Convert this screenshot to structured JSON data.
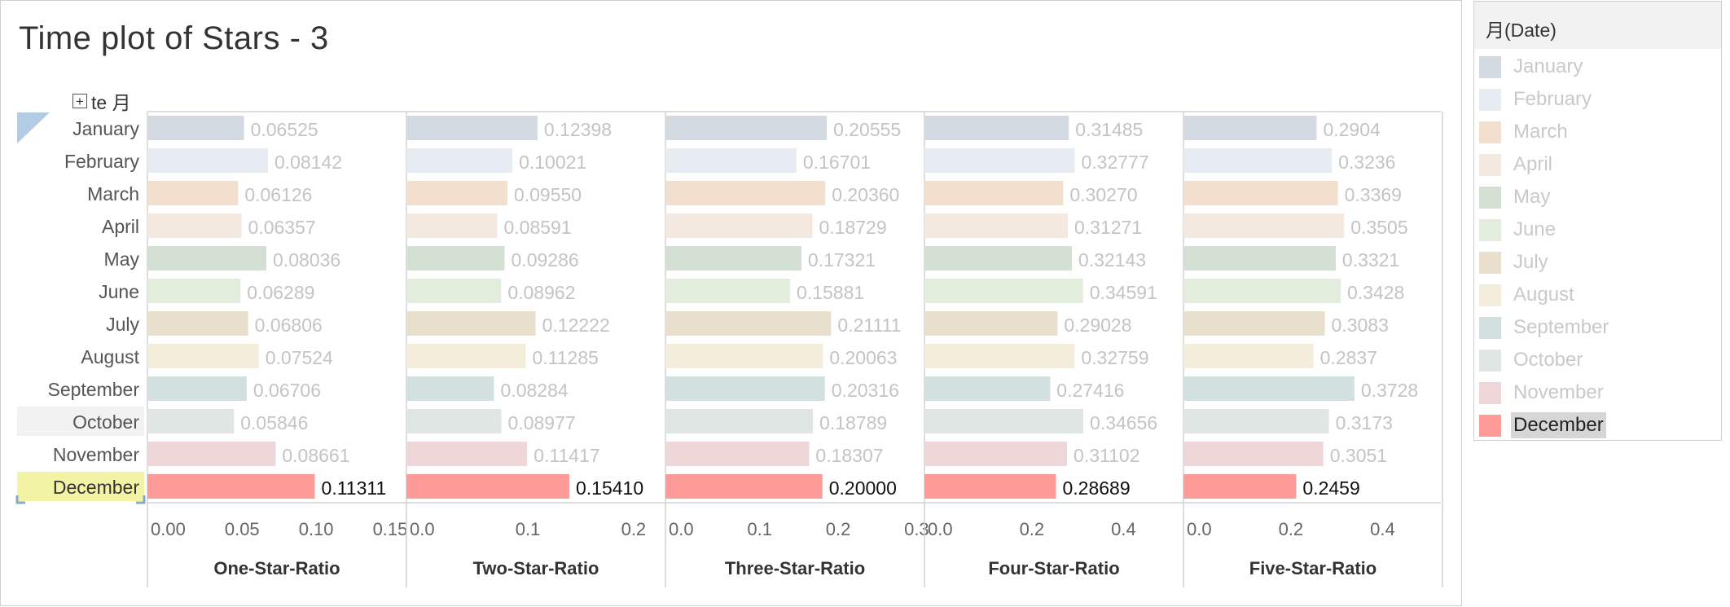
{
  "title": "Time plot of Stars - 3",
  "row_header": {
    "icon": "expand-box-icon",
    "label": "te 月"
  },
  "legend": {
    "title": "月(Date)",
    "items": [
      {
        "label": "January",
        "color": "#d3dae2",
        "active": false
      },
      {
        "label": "February",
        "color": "#e6ecf2",
        "active": false
      },
      {
        "label": "March",
        "color": "#f2dfce",
        "active": false
      },
      {
        "label": "April",
        "color": "#f3e9e0",
        "active": false
      },
      {
        "label": "May",
        "color": "#d3e0d3",
        "active": false
      },
      {
        "label": "June",
        "color": "#e2edde",
        "active": false
      },
      {
        "label": "July",
        "color": "#e8e0cd",
        "active": false
      },
      {
        "label": "August",
        "color": "#f4eddb",
        "active": false
      },
      {
        "label": "September",
        "color": "#d2e0df",
        "active": false
      },
      {
        "label": "October",
        "color": "#dfe6e4",
        "active": false
      },
      {
        "label": "November",
        "color": "#efd6d9",
        "active": false
      },
      {
        "label": "December",
        "color": "#fe9b98",
        "active": true
      }
    ]
  },
  "row_highlight": {
    "hover_row": "October",
    "selected_row": "December",
    "hover_color": "#f2f2f2",
    "selected_color": "#f3f3a5"
  },
  "chart_data": {
    "type": "bar",
    "orientation": "horizontal",
    "categories": [
      "January",
      "February",
      "March",
      "April",
      "May",
      "June",
      "July",
      "August",
      "September",
      "October",
      "November",
      "December"
    ],
    "series": [
      {
        "name": "One-Star-Ratio",
        "values": [
          0.06525,
          0.08142,
          0.06126,
          0.06357,
          0.08036,
          0.06289,
          0.06806,
          0.07524,
          0.06706,
          0.05846,
          0.08661,
          0.11311
        ],
        "labels": [
          "0.06525",
          "0.08142",
          "0.06126",
          "0.06357",
          "0.08036",
          "0.06289",
          "0.06806",
          "0.07524",
          "0.06706",
          "0.05846",
          "0.08661",
          "0.11311"
        ],
        "xlim": [
          0,
          0.175
        ],
        "ticks": [
          0,
          0.05,
          0.1,
          0.15
        ],
        "tick_labels": [
          "0.00",
          "0.05",
          "0.10",
          "0.15"
        ]
      },
      {
        "name": "Two-Star-Ratio",
        "values": [
          0.12398,
          0.10021,
          0.0955,
          0.08591,
          0.09286,
          0.08962,
          0.12222,
          0.11285,
          0.08284,
          0.08977,
          0.11417,
          0.1541
        ],
        "labels": [
          "0.12398",
          "0.10021",
          "0.09550",
          "0.08591",
          "0.09286",
          "0.08962",
          "0.12222",
          "0.11285",
          "0.08284",
          "0.08977",
          "0.11417",
          "0.15410"
        ],
        "xlim": [
          0,
          0.245
        ],
        "ticks": [
          0,
          0.1,
          0.2
        ],
        "tick_labels": [
          "0.0",
          "0.1",
          "0.2"
        ]
      },
      {
        "name": "Three-Star-Ratio",
        "values": [
          0.20555,
          0.16701,
          0.2036,
          0.18729,
          0.17321,
          0.15881,
          0.21111,
          0.20063,
          0.20316,
          0.18789,
          0.18307,
          0.2
        ],
        "labels": [
          "0.20555",
          "0.16701",
          "0.20360",
          "0.18729",
          "0.17321",
          "0.15881",
          "0.21111",
          "0.20063",
          "0.20316",
          "0.18789",
          "0.18307",
          "0.20000"
        ],
        "xlim": [
          0,
          0.33
        ],
        "ticks": [
          0,
          0.1,
          0.2,
          0.3
        ],
        "tick_labels": [
          "0.0",
          "0.1",
          "0.2",
          "0.3"
        ]
      },
      {
        "name": "Four-Star-Ratio",
        "values": [
          0.31485,
          0.32777,
          0.3027,
          0.31271,
          0.32143,
          0.34591,
          0.29028,
          0.32759,
          0.27416,
          0.34656,
          0.31102,
          0.28689
        ],
        "labels": [
          "0.31485",
          "0.32777",
          "0.30270",
          "0.31271",
          "0.32143",
          "0.34591",
          "0.29028",
          "0.32759",
          "0.27416",
          "0.34656",
          "0.31102",
          "0.28689"
        ],
        "xlim": [
          0,
          0.565
        ],
        "ticks": [
          0,
          0.2,
          0.4
        ],
        "tick_labels": [
          "0.0",
          "0.2",
          "0.4"
        ]
      },
      {
        "name": "Five-Star-Ratio",
        "values": [
          0.2904,
          0.3236,
          0.3369,
          0.3505,
          0.3321,
          0.3428,
          0.3083,
          0.2837,
          0.3728,
          0.3173,
          0.3051,
          0.2459
        ],
        "labels": [
          "0.2904",
          "0.3236",
          "0.3369",
          "0.3505",
          "0.3321",
          "0.3428",
          "0.3083",
          "0.2837",
          "0.3728",
          "0.3173",
          "0.3051",
          "0.2459"
        ],
        "xlim": [
          0,
          0.565
        ],
        "ticks": [
          0,
          0.2,
          0.4
        ],
        "tick_labels": [
          "0.0",
          "0.2",
          "0.4"
        ]
      }
    ],
    "grid": false,
    "legend_placement": "right",
    "highlighted_category": "December"
  }
}
